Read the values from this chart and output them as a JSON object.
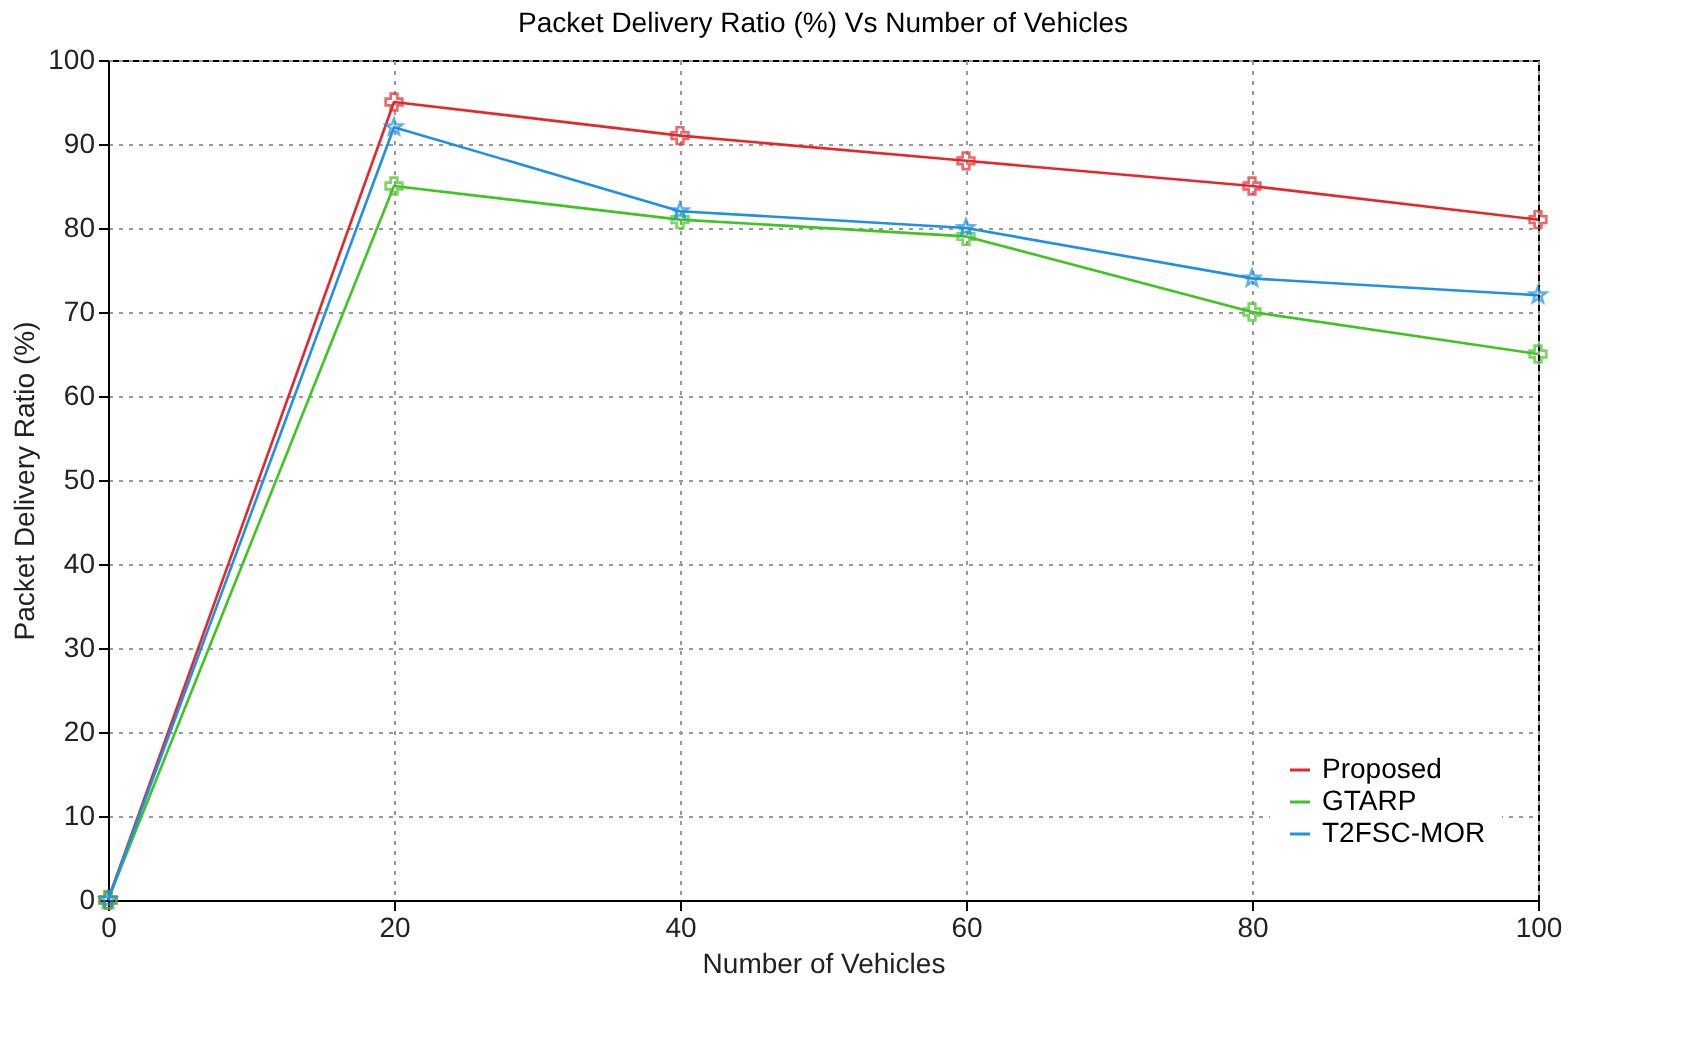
{
  "chart_data": {
    "type": "line",
    "title": "Packet Delivery Ratio (%) Vs Number of Vehicles",
    "xlabel": "Number of Vehicles",
    "ylabel": "Packet Delivery Ratio (%)",
    "x": [
      0,
      20,
      40,
      60,
      80,
      100
    ],
    "series": [
      {
        "name": "Proposed",
        "color": "#e8262a",
        "marker": "cross",
        "values": [
          0,
          95,
          91,
          88,
          85,
          81
        ]
      },
      {
        "name": "GTARP",
        "color": "#3fc51f",
        "marker": "cross",
        "values": [
          0,
          85,
          81,
          79,
          70,
          65
        ]
      },
      {
        "name": "T2FSC-MOR",
        "color": "#1e90e6",
        "marker": "star",
        "values": [
          0,
          92,
          82,
          80,
          74,
          72
        ]
      }
    ],
    "xlim": [
      0,
      100
    ],
    "xticks": [
      0,
      20,
      40,
      60,
      80,
      100
    ],
    "ylim": [
      0,
      100
    ],
    "yticks": [
      0,
      10,
      20,
      30,
      40,
      50,
      60,
      70,
      80,
      90,
      100
    ],
    "grid": true,
    "legend": "bottom right",
    "line_style": "solid"
  }
}
